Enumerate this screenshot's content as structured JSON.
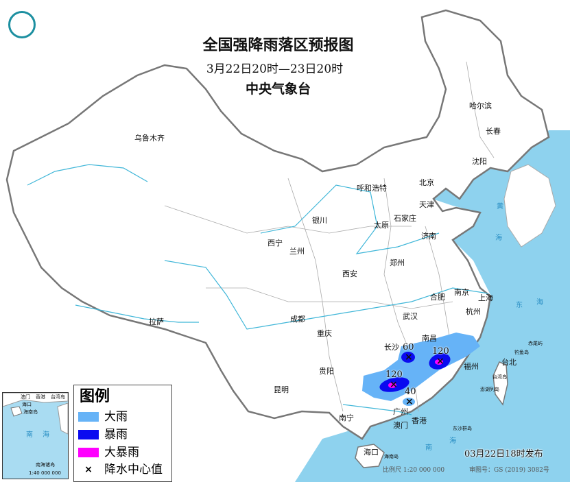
{
  "header": {
    "title": "全国强降雨落区预报图",
    "period": "3月22日20时—23日20时",
    "issuer": "中央气象台"
  },
  "cities": [
    {
      "name": "乌鲁木齐"
    },
    {
      "name": "哈尔滨"
    },
    {
      "name": "长春"
    },
    {
      "name": "沈阳"
    },
    {
      "name": "北京"
    },
    {
      "name": "天津"
    },
    {
      "name": "呼和浩特"
    },
    {
      "name": "银川"
    },
    {
      "name": "太原"
    },
    {
      "name": "石家庄"
    },
    {
      "name": "济南"
    },
    {
      "name": "西宁"
    },
    {
      "name": "兰州"
    },
    {
      "name": "郑州"
    },
    {
      "name": "西安"
    },
    {
      "name": "合肥"
    },
    {
      "name": "南京"
    },
    {
      "name": "上海"
    },
    {
      "name": "杭州"
    },
    {
      "name": "武汉"
    },
    {
      "name": "成都"
    },
    {
      "name": "拉萨"
    },
    {
      "name": "重庆"
    },
    {
      "name": "长沙"
    },
    {
      "name": "南昌"
    },
    {
      "name": "福州"
    },
    {
      "name": "台北"
    },
    {
      "name": "贵阳"
    },
    {
      "name": "昆明"
    },
    {
      "name": "南宁"
    },
    {
      "name": "广州"
    },
    {
      "name": "香港"
    },
    {
      "name": "澳门"
    },
    {
      "name": "海口"
    }
  ],
  "islands": [
    "台湾岛",
    "钓鱼岛",
    "赤尾屿",
    "澎湖列岛",
    "东沙群岛",
    "海南岛"
  ],
  "seas": [
    "黄",
    "海",
    "东",
    "海",
    "南",
    "海"
  ],
  "rain_centers": [
    {
      "value": "60",
      "level": "暴雨"
    },
    {
      "value": "120",
      "level": "大暴雨"
    },
    {
      "value": "120",
      "level": "大暴雨"
    },
    {
      "value": "40",
      "level": "大雨"
    }
  ],
  "legend": {
    "title": "图例",
    "items": [
      {
        "label": "大雨",
        "color": "#66b3f7"
      },
      {
        "label": "暴雨",
        "color": "#0a0af0"
      },
      {
        "label": "大暴雨",
        "color": "#ff00ff"
      }
    ],
    "center_label": "降水中心值",
    "center_symbol": "×"
  },
  "inset": {
    "labels": [
      "澳门",
      "香港",
      "台湾岛",
      "海口",
      "海南岛",
      "南",
      "海",
      "南海诸岛"
    ],
    "scale": "1:40 000 000"
  },
  "footer": {
    "published": "03月22日18时发布",
    "scale": "比例尺 1:20 000 000",
    "map_approval": "审图号：GS (2019) 3082号"
  },
  "colors": {
    "sea": "#8ed2ee",
    "land": "#ffffff",
    "border": "#888888",
    "river": "#3fb6d8"
  }
}
